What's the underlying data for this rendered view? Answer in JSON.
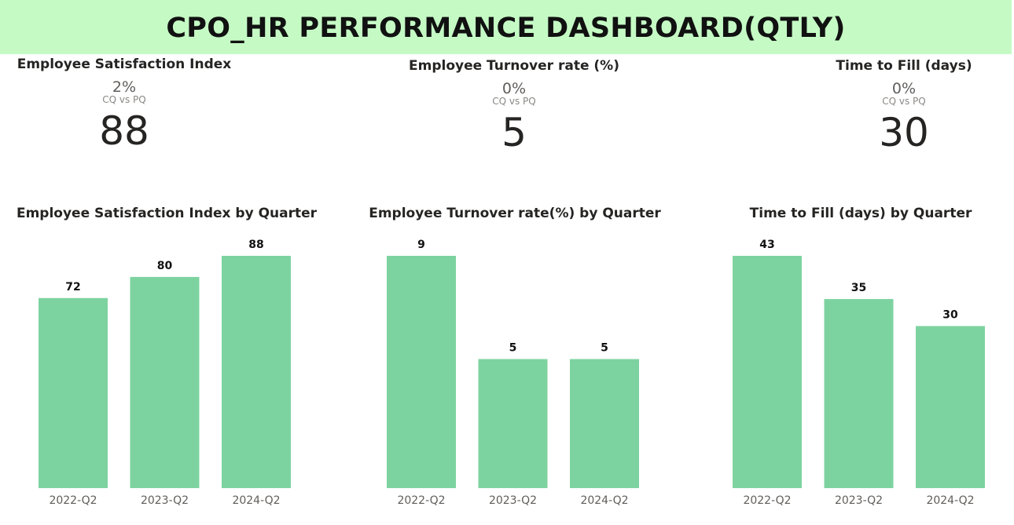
{
  "header": {
    "title": "CPO_HR PERFORMANCE DASHBOARD(QTLY)"
  },
  "kpis": [
    {
      "title": "Employee Satisfaction Index",
      "change": "2%",
      "comparison": "CQ vs PQ",
      "value": "88"
    },
    {
      "title": "Employee Turnover rate (%)",
      "change": "0%",
      "comparison": "CQ vs PQ",
      "value": "5"
    },
    {
      "title": "Time to Fill (days)",
      "change": "0%",
      "comparison": "CQ vs PQ",
      "value": "30"
    }
  ],
  "colors": {
    "banner": "#c5fac5",
    "bar": "#7dd3a0"
  },
  "chart_data": [
    {
      "type": "bar",
      "title": "Employee Satisfaction Index by Quarter",
      "categories": [
        "2022-Q2",
        "2023-Q2",
        "2024-Q2"
      ],
      "values": [
        72,
        80,
        88
      ],
      "data_labels": true,
      "grid": false
    },
    {
      "type": "bar",
      "title": "Employee Turnover rate(%) by Quarter",
      "categories": [
        "2022-Q2",
        "2023-Q2",
        "2024-Q2"
      ],
      "values": [
        9,
        5,
        5
      ],
      "data_labels": true,
      "grid": false
    },
    {
      "type": "bar",
      "title": "Time to Fill (days) by Quarter",
      "categories": [
        "2022-Q2",
        "2023-Q2",
        "2024-Q2"
      ],
      "values": [
        43,
        35,
        30
      ],
      "data_labels": true,
      "grid": false
    }
  ]
}
